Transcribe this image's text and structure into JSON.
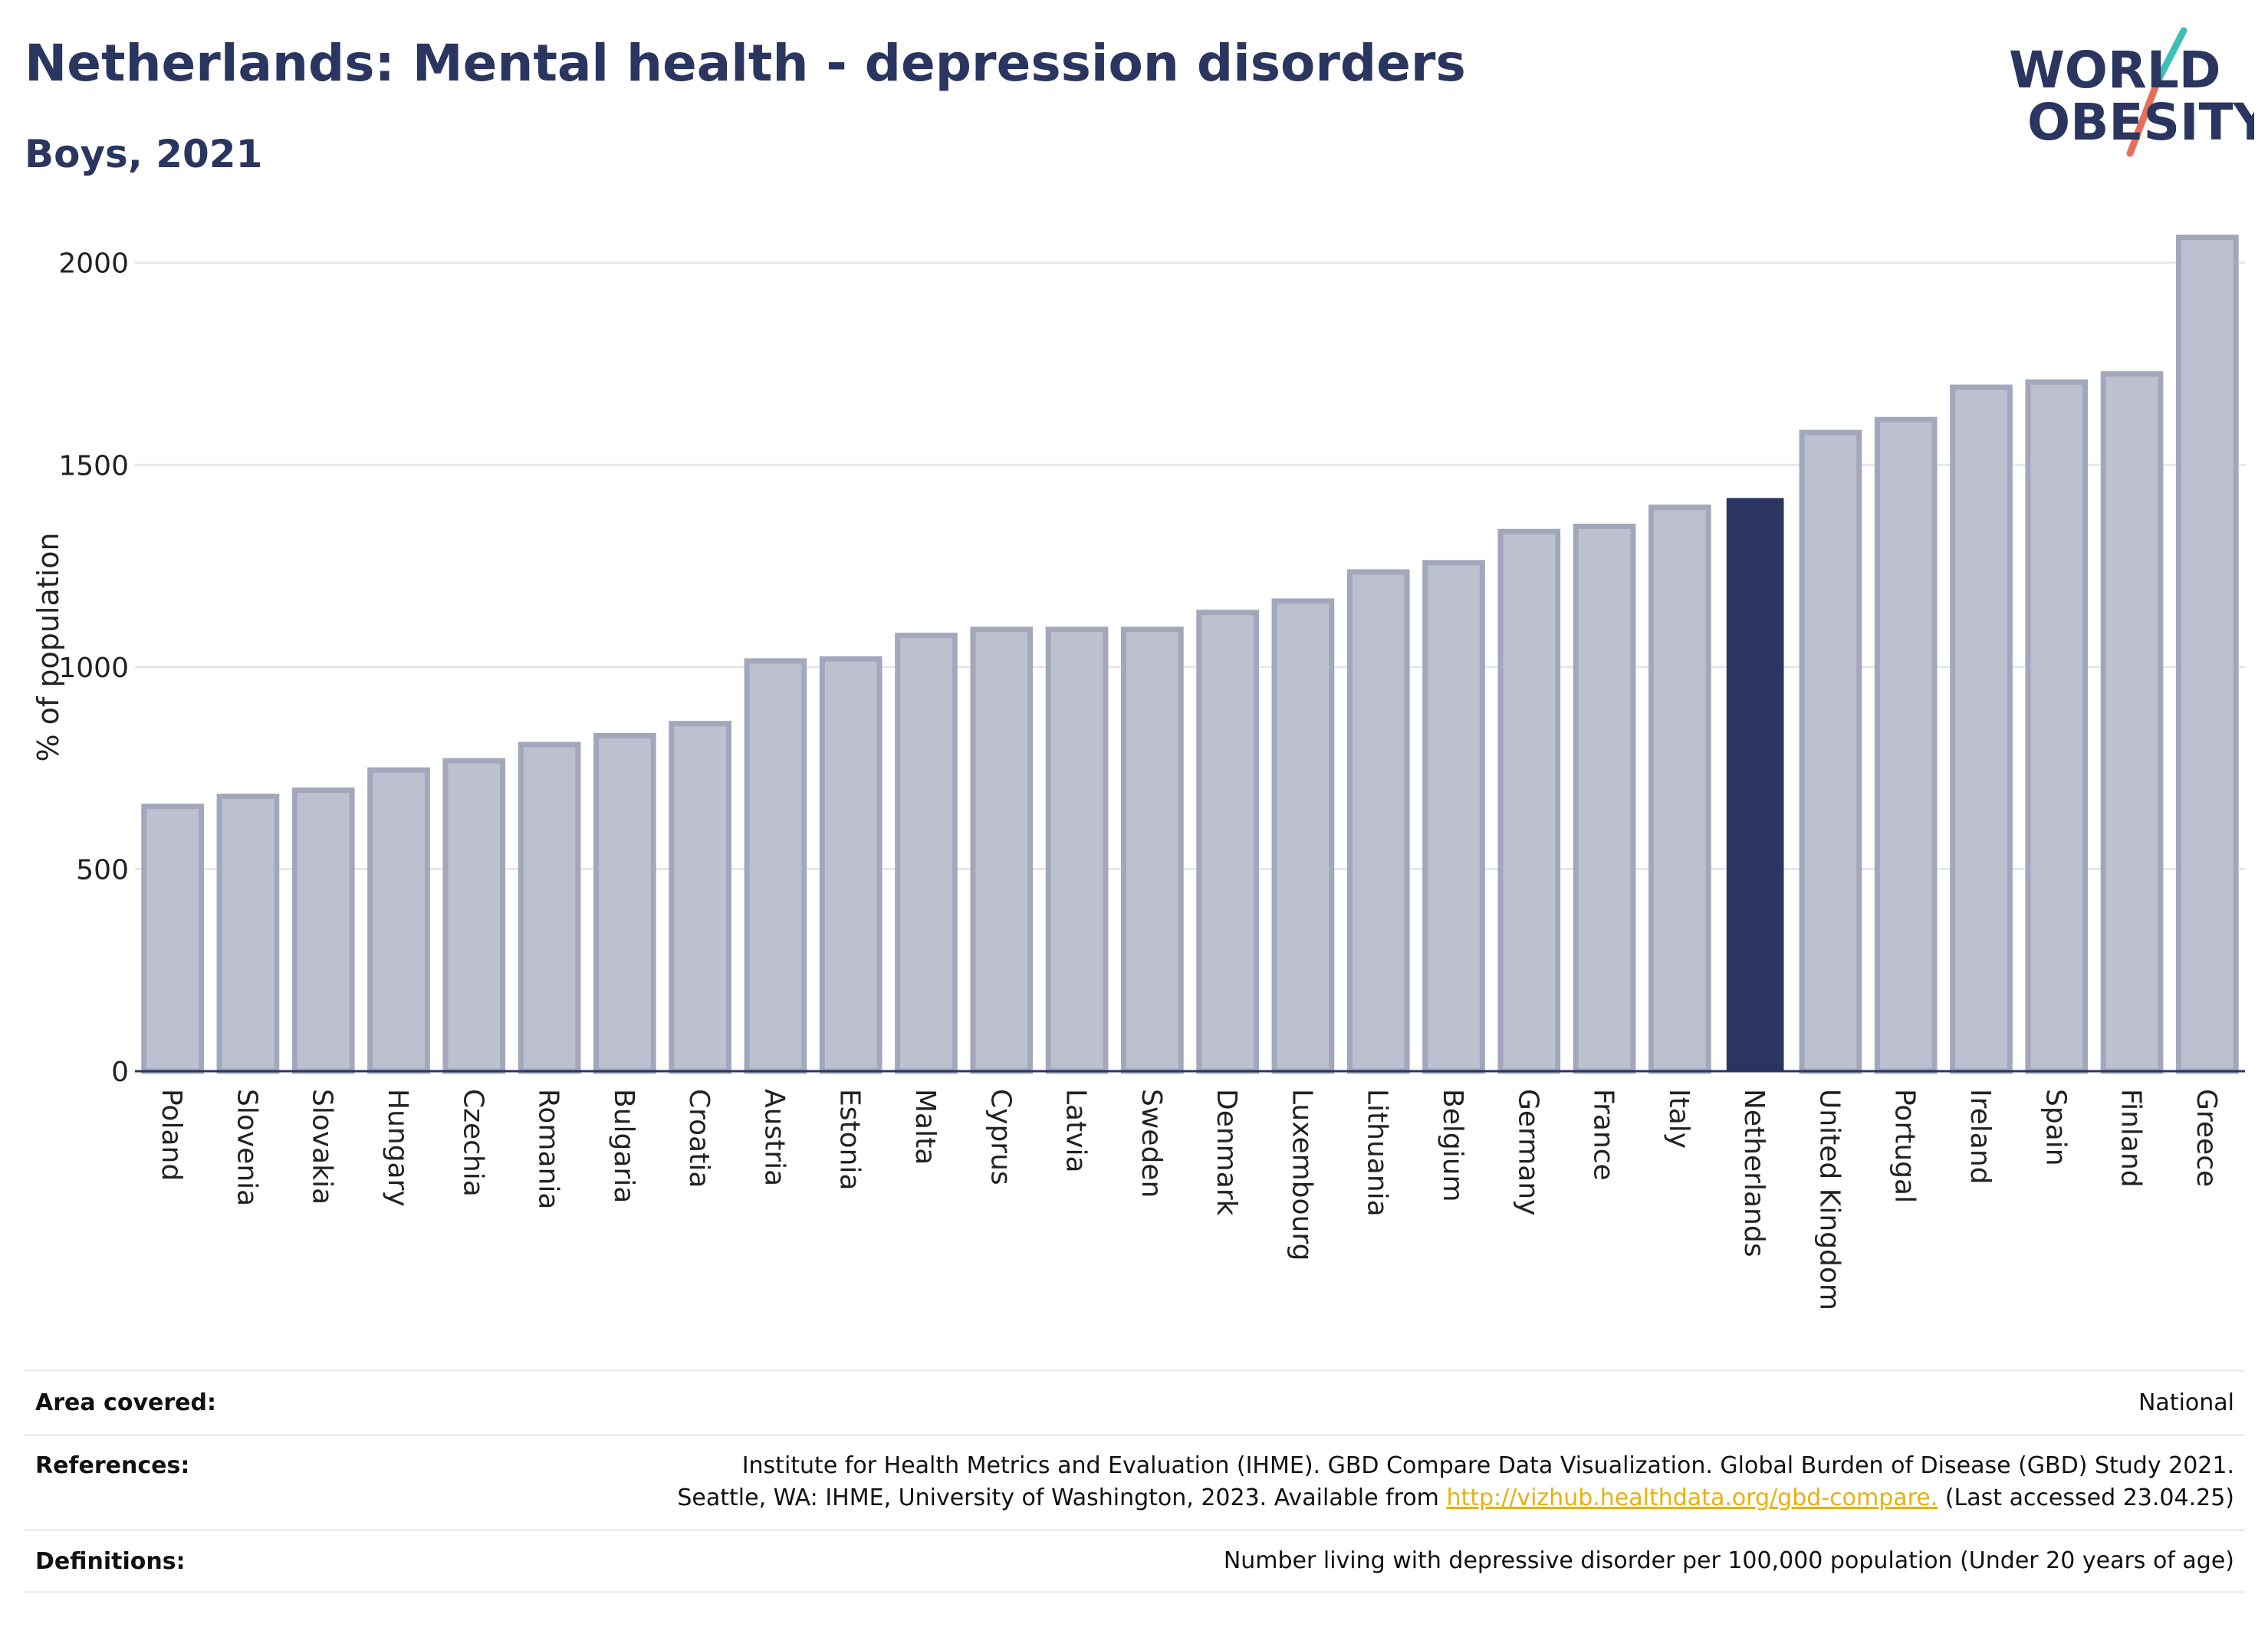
{
  "header": {
    "title": "Netherlands: Mental health - depression disorders",
    "subtitle": "Boys, 2021"
  },
  "logo": {
    "line1": "WORLD",
    "line2": "OBESITY"
  },
  "colors": {
    "highlight_bar": "#2a3560",
    "other_bar_fill": "#bcc0cf",
    "other_bar_border": "#a2a7bb",
    "gridline": "#e6e7ee",
    "axis": "#2a3560",
    "logo_text": "#2a3560",
    "logo_slash_top": "#3dbfb5",
    "logo_slash_bottom": "#e8705a"
  },
  "chart_data": {
    "type": "bar",
    "title": "Netherlands: Mental health - depression disorders",
    "subtitle": "Boys, 2021",
    "xlabel": "",
    "ylabel": "% of population",
    "ylim": [
      0,
      2100
    ],
    "yticks": [
      0,
      500,
      1000,
      1500,
      2000
    ],
    "grid": true,
    "highlight": "Netherlands",
    "categories": [
      "Poland",
      "Slovenia",
      "Slovakia",
      "Hungary",
      "Czechia",
      "Romania",
      "Bulgaria",
      "Croatia",
      "Austria",
      "Estonia",
      "Malta",
      "Cyprus",
      "Latvia",
      "Sweden",
      "Denmark",
      "Luxembourg",
      "Lithuania",
      "Belgium",
      "Germany",
      "France",
      "Italy",
      "Netherlands",
      "United Kingdom",
      "Portugal",
      "Ireland",
      "Spain",
      "Finland",
      "Greece"
    ],
    "values": [
      655,
      680,
      695,
      745,
      768,
      808,
      830,
      860,
      1015,
      1020,
      1078,
      1093,
      1093,
      1093,
      1135,
      1163,
      1235,
      1258,
      1335,
      1348,
      1395,
      1418,
      1580,
      1612,
      1692,
      1705,
      1725,
      2063
    ]
  },
  "footer": {
    "area_label": "Area covered:",
    "area_value": "National",
    "references_label": "References:",
    "references_line1": "Institute for Health Metrics and Evaluation (IHME). GBD Compare Data Visualization. Global Burden of Disease (GBD) Study 2021.",
    "references_line2_pre": "Seattle, WA: IHME, University of Washington, 2023. Available from ",
    "references_link": "http://vizhub.healthdata.org/gbd-compare.",
    "references_line2_post": " (Last accessed 23.04.25)",
    "definitions_label": "Definitions:",
    "definitions_value": "Number living with depressive disorder per 100,000 population (Under 20 years of age)"
  }
}
